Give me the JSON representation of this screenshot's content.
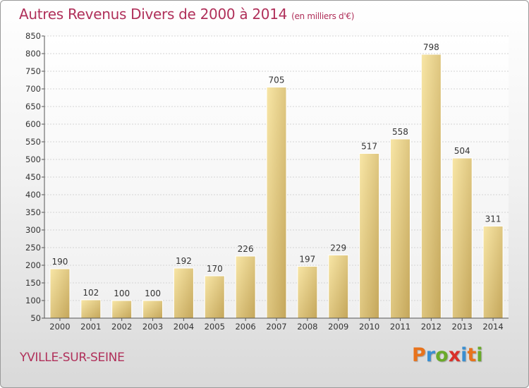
{
  "title": "Autres Revenus Divers de 2000 à 2014",
  "subtitle": "(en milliers d'€)",
  "location": "YVILLE-SUR-SEINE",
  "logo": {
    "letters": [
      "P",
      "r",
      "o",
      "x",
      "i",
      "t",
      "i"
    ],
    "colors": [
      "#e8731c",
      "#3a8fd1",
      "#6aaa2a",
      "#d9302a",
      "#3a8fd1",
      "#e8731c",
      "#6aaa2a"
    ]
  },
  "colors": {
    "title": "#b0305a",
    "bar_light": "#f5df9a",
    "bar_dark": "#c8ad62"
  },
  "chart_data": {
    "type": "bar",
    "title": "Autres Revenus Divers de 2000 à 2014",
    "subtitle": "(en milliers d'€)",
    "xlabel": "",
    "ylabel": "",
    "categories": [
      "2000",
      "2001",
      "2002",
      "2003",
      "2004",
      "2005",
      "2006",
      "2007",
      "2008",
      "2009",
      "2010",
      "2011",
      "2012",
      "2013",
      "2014"
    ],
    "values": [
      190,
      102,
      100,
      100,
      192,
      170,
      226,
      705,
      197,
      229,
      517,
      558,
      798,
      504,
      311
    ],
    "ylim": [
      50,
      850
    ],
    "yticks": [
      50,
      100,
      150,
      200,
      250,
      300,
      350,
      400,
      450,
      500,
      550,
      600,
      650,
      700,
      750,
      800,
      850
    ],
    "grid": true
  }
}
